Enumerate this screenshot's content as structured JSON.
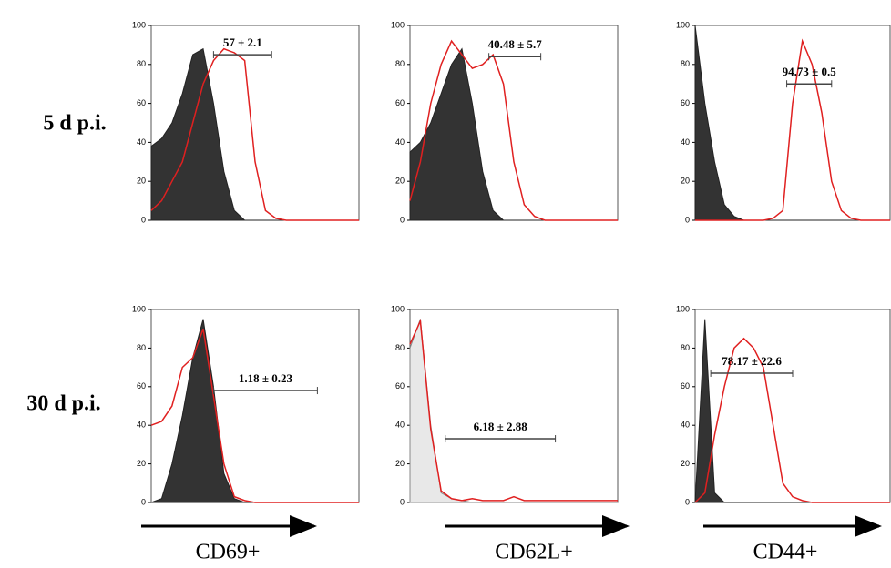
{
  "row_labels": [
    "5 d p.i.",
    "30 d p.i."
  ],
  "column_labels": [
    "CD69+",
    "CD62L+",
    "CD44+"
  ],
  "chart_data": [
    {
      "type": "line",
      "x": [
        0,
        5,
        10,
        15,
        20,
        25,
        30,
        35,
        40,
        45,
        50,
        55,
        60,
        65,
        70,
        75,
        80,
        85,
        90,
        95,
        100
      ],
      "xlim": [
        0,
        100
      ],
      "ylim": [
        0,
        100
      ],
      "yticks": [
        0,
        20,
        40,
        60,
        80,
        100
      ],
      "series": [
        {
          "color": "#222222",
          "fill": "#333333",
          "values": [
            38,
            42,
            50,
            65,
            85,
            88,
            60,
            25,
            5,
            0,
            0,
            0,
            0,
            0,
            0,
            0,
            0,
            0,
            0,
            0,
            0
          ]
        },
        {
          "color": "#e02020",
          "values": [
            5,
            10,
            20,
            30,
            50,
            70,
            82,
            88,
            86,
            82,
            30,
            5,
            1,
            0,
            0,
            0,
            0,
            0,
            0,
            0,
            0
          ]
        }
      ],
      "gate": {
        "label": "57 ± 2.1",
        "x": [
          30,
          58
        ],
        "y": 85
      }
    },
    {
      "type": "line",
      "x": [
        0,
        5,
        10,
        15,
        20,
        25,
        30,
        35,
        40,
        45,
        50,
        55,
        60,
        65,
        70,
        75,
        80,
        85,
        90,
        95,
        100
      ],
      "xlim": [
        0,
        100
      ],
      "ylim": [
        0,
        100
      ],
      "yticks": [
        0,
        20,
        40,
        60,
        80,
        100
      ],
      "series": [
        {
          "color": "#222222",
          "fill": "#333333",
          "values": [
            35,
            40,
            50,
            65,
            80,
            88,
            60,
            25,
            5,
            0,
            0,
            0,
            0,
            0,
            0,
            0,
            0,
            0,
            0,
            0,
            0
          ]
        },
        {
          "color": "#e02020",
          "values": [
            10,
            30,
            60,
            80,
            92,
            85,
            78,
            80,
            85,
            70,
            30,
            8,
            2,
            0,
            0,
            0,
            0,
            0,
            0,
            0,
            0
          ]
        }
      ],
      "gate": {
        "label": "40.48 ± 5.7",
        "x": [
          38,
          63
        ],
        "y": 84
      }
    },
    {
      "type": "line",
      "x": [
        0,
        5,
        10,
        15,
        20,
        25,
        30,
        35,
        40,
        45,
        50,
        55,
        60,
        65,
        70,
        75,
        80,
        85,
        90,
        95,
        100
      ],
      "xlim": [
        0,
        100
      ],
      "ylim": [
        0,
        100
      ],
      "yticks": [
        0,
        20,
        40,
        60,
        80,
        100
      ],
      "series": [
        {
          "color": "#222222",
          "fill": "#333333",
          "values": [
            100,
            60,
            30,
            8,
            2,
            0,
            0,
            0,
            0,
            0,
            0,
            0,
            0,
            0,
            0,
            0,
            0,
            0,
            0,
            0,
            0
          ]
        },
        {
          "color": "#e02020",
          "values": [
            0,
            0,
            0,
            0,
            0,
            0,
            0,
            0,
            1,
            5,
            60,
            92,
            80,
            55,
            20,
            5,
            1,
            0,
            0,
            0,
            0
          ]
        }
      ],
      "gate": {
        "label": "94.73 ± 0.5",
        "x": [
          47,
          70
        ],
        "y": 70
      }
    },
    {
      "type": "line",
      "x": [
        0,
        5,
        10,
        15,
        20,
        25,
        30,
        35,
        40,
        45,
        50,
        55,
        60,
        65,
        70,
        75,
        80,
        85,
        90,
        95,
        100
      ],
      "xlim": [
        0,
        100
      ],
      "ylim": [
        0,
        100
      ],
      "yticks": [
        0,
        20,
        40,
        60,
        80,
        100
      ],
      "series": [
        {
          "color": "#222222",
          "fill": "#333333",
          "values": [
            0,
            2,
            20,
            45,
            75,
            95,
            60,
            15,
            2,
            0,
            0,
            0,
            0,
            0,
            0,
            0,
            0,
            0,
            0,
            0,
            0
          ]
        },
        {
          "color": "#e02020",
          "values": [
            40,
            42,
            50,
            70,
            75,
            90,
            55,
            20,
            3,
            1,
            0,
            0,
            0,
            0,
            0,
            0,
            0,
            0,
            0,
            0,
            0
          ]
        }
      ],
      "gate": {
        "label": "1.18 ± 0.23",
        "x": [
          30,
          80
        ],
        "y": 58
      }
    },
    {
      "type": "line",
      "x": [
        0,
        5,
        10,
        15,
        20,
        25,
        30,
        35,
        40,
        45,
        50,
        55,
        60,
        65,
        70,
        75,
        80,
        85,
        90,
        95,
        100
      ],
      "xlim": [
        0,
        100
      ],
      "ylim": [
        0,
        100
      ],
      "yticks": [
        0,
        20,
        40,
        60,
        80,
        100
      ],
      "series": [
        {
          "color": "#888888",
          "fill": "#e8e8e8",
          "values": [
            80,
            95,
            40,
            5,
            2,
            1,
            0,
            0,
            0,
            0,
            0,
            0,
            0,
            0,
            0,
            0,
            0,
            0,
            0,
            0,
            0
          ]
        },
        {
          "color": "#e02020",
          "values": [
            82,
            94,
            38,
            6,
            2,
            1,
            2,
            1,
            1,
            1,
            3,
            1,
            1,
            1,
            1,
            1,
            1,
            1,
            1,
            1,
            1
          ]
        }
      ],
      "gate": {
        "label": "6.18 ± 2.88",
        "x": [
          17,
          70
        ],
        "y": 33
      }
    },
    {
      "type": "line",
      "x": [
        0,
        5,
        10,
        15,
        20,
        25,
        30,
        35,
        40,
        45,
        50,
        55,
        60,
        65,
        70,
        75,
        80,
        85,
        90,
        95,
        100
      ],
      "xlim": [
        0,
        100
      ],
      "ylim": [
        0,
        100
      ],
      "yticks": [
        0,
        20,
        40,
        60,
        80,
        100
      ],
      "series": [
        {
          "color": "#222222",
          "fill": "#333333",
          "values": [
            0,
            95,
            5,
            0,
            0,
            0,
            0,
            0,
            0,
            0,
            0,
            0,
            0,
            0,
            0,
            0,
            0,
            0,
            0,
            0,
            0
          ]
        },
        {
          "color": "#e02020",
          "values": [
            0,
            5,
            35,
            60,
            80,
            85,
            80,
            70,
            40,
            10,
            3,
            1,
            0,
            0,
            0,
            0,
            0,
            0,
            0,
            0,
            0
          ]
        }
      ],
      "gate": {
        "label": "78.17 ± 22.6",
        "x": [
          8,
          50
        ],
        "y": 67
      }
    }
  ]
}
